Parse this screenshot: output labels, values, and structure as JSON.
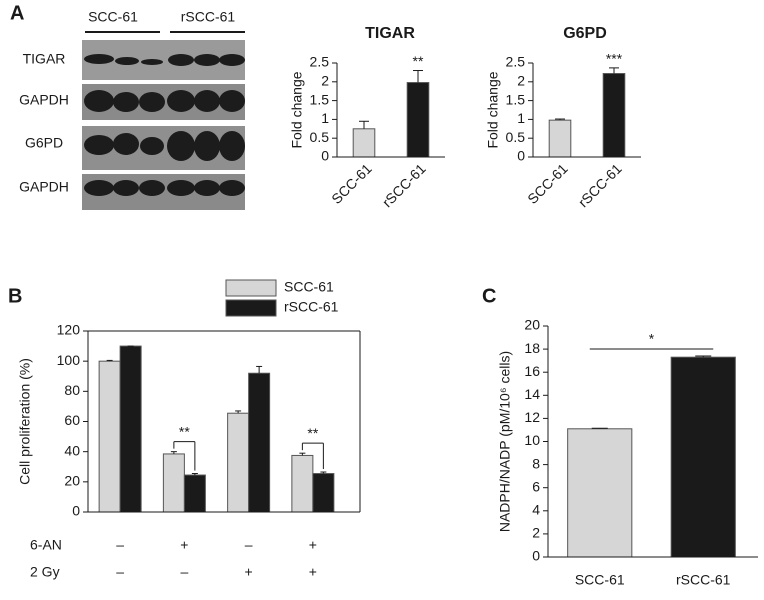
{
  "panels": [
    "A",
    "B",
    "C"
  ],
  "blot": {
    "lane_groups": [
      "SCC-61",
      "rSCC-61"
    ],
    "rows": [
      "TIGAR",
      "GAPDH",
      "G6PD",
      "GAPDH"
    ]
  },
  "chart_data": [
    {
      "type": "bar",
      "title": "TIGAR",
      "y_label": "Fold change",
      "categories": [
        "SCC-61",
        "rSCC-61"
      ],
      "values": [
        0.75,
        1.98
      ],
      "errors": [
        0.2,
        0.32
      ],
      "colors": [
        "#d6d6d6",
        "#1a1a1a"
      ],
      "annotations": [
        "**"
      ],
      "ylim": [
        0,
        2.5
      ],
      "yticks": [
        0,
        0.5,
        1,
        1.5,
        2,
        2.5
      ]
    },
    {
      "type": "bar",
      "title": "G6PD",
      "y_label": "Fold change",
      "categories": [
        "SCC-61",
        "rSCC-61"
      ],
      "values": [
        0.98,
        2.22
      ],
      "errors": [
        0.03,
        0.15
      ],
      "colors": [
        "#d6d6d6",
        "#1a1a1a"
      ],
      "annotations": [
        "***"
      ],
      "ylim": [
        0,
        2.5
      ],
      "yticks": [
        0,
        0.5,
        1,
        1.5,
        2,
        2.5
      ]
    },
    {
      "type": "grouped_bar",
      "y_label": "Cell proliferation (%)",
      "conditions": [
        {
          "name": "6-AN",
          "labels": [
            "–",
            "+",
            "–",
            "+"
          ]
        },
        {
          "name": "2 Gy",
          "labels": [
            "–",
            "–",
            "+",
            "+"
          ]
        }
      ],
      "series": [
        {
          "name": "SCC-61",
          "color": "#d6d6d6",
          "values": [
            100,
            38.5,
            65.5,
            37.5
          ],
          "errors": [
            0.5,
            1.5,
            1.5,
            1.5
          ]
        },
        {
          "name": "rSCC-61",
          "color": "#1a1a1a",
          "values": [
            110,
            24.5,
            92,
            25.5
          ],
          "errors": [
            0,
            1,
            4.5,
            1
          ]
        }
      ],
      "annotations": [
        "**",
        "**"
      ],
      "ylim": [
        0,
        120
      ],
      "yticks": [
        0,
        20,
        40,
        60,
        80,
        100,
        120
      ]
    },
    {
      "type": "bar",
      "y_label": "NADPH/NADP (pM/10⁶ cells)",
      "categories": [
        "SCC-61",
        "rSCC-61"
      ],
      "values": [
        11.1,
        17.3
      ],
      "errors": [
        0.05,
        0.1
      ],
      "colors": [
        "#d6d6d6",
        "#1a1a1a"
      ],
      "annotations": [
        "*"
      ],
      "ylim": [
        0,
        20
      ],
      "yticks": [
        0,
        2,
        4,
        6,
        8,
        10,
        12,
        14,
        16,
        18,
        20
      ]
    }
  ]
}
